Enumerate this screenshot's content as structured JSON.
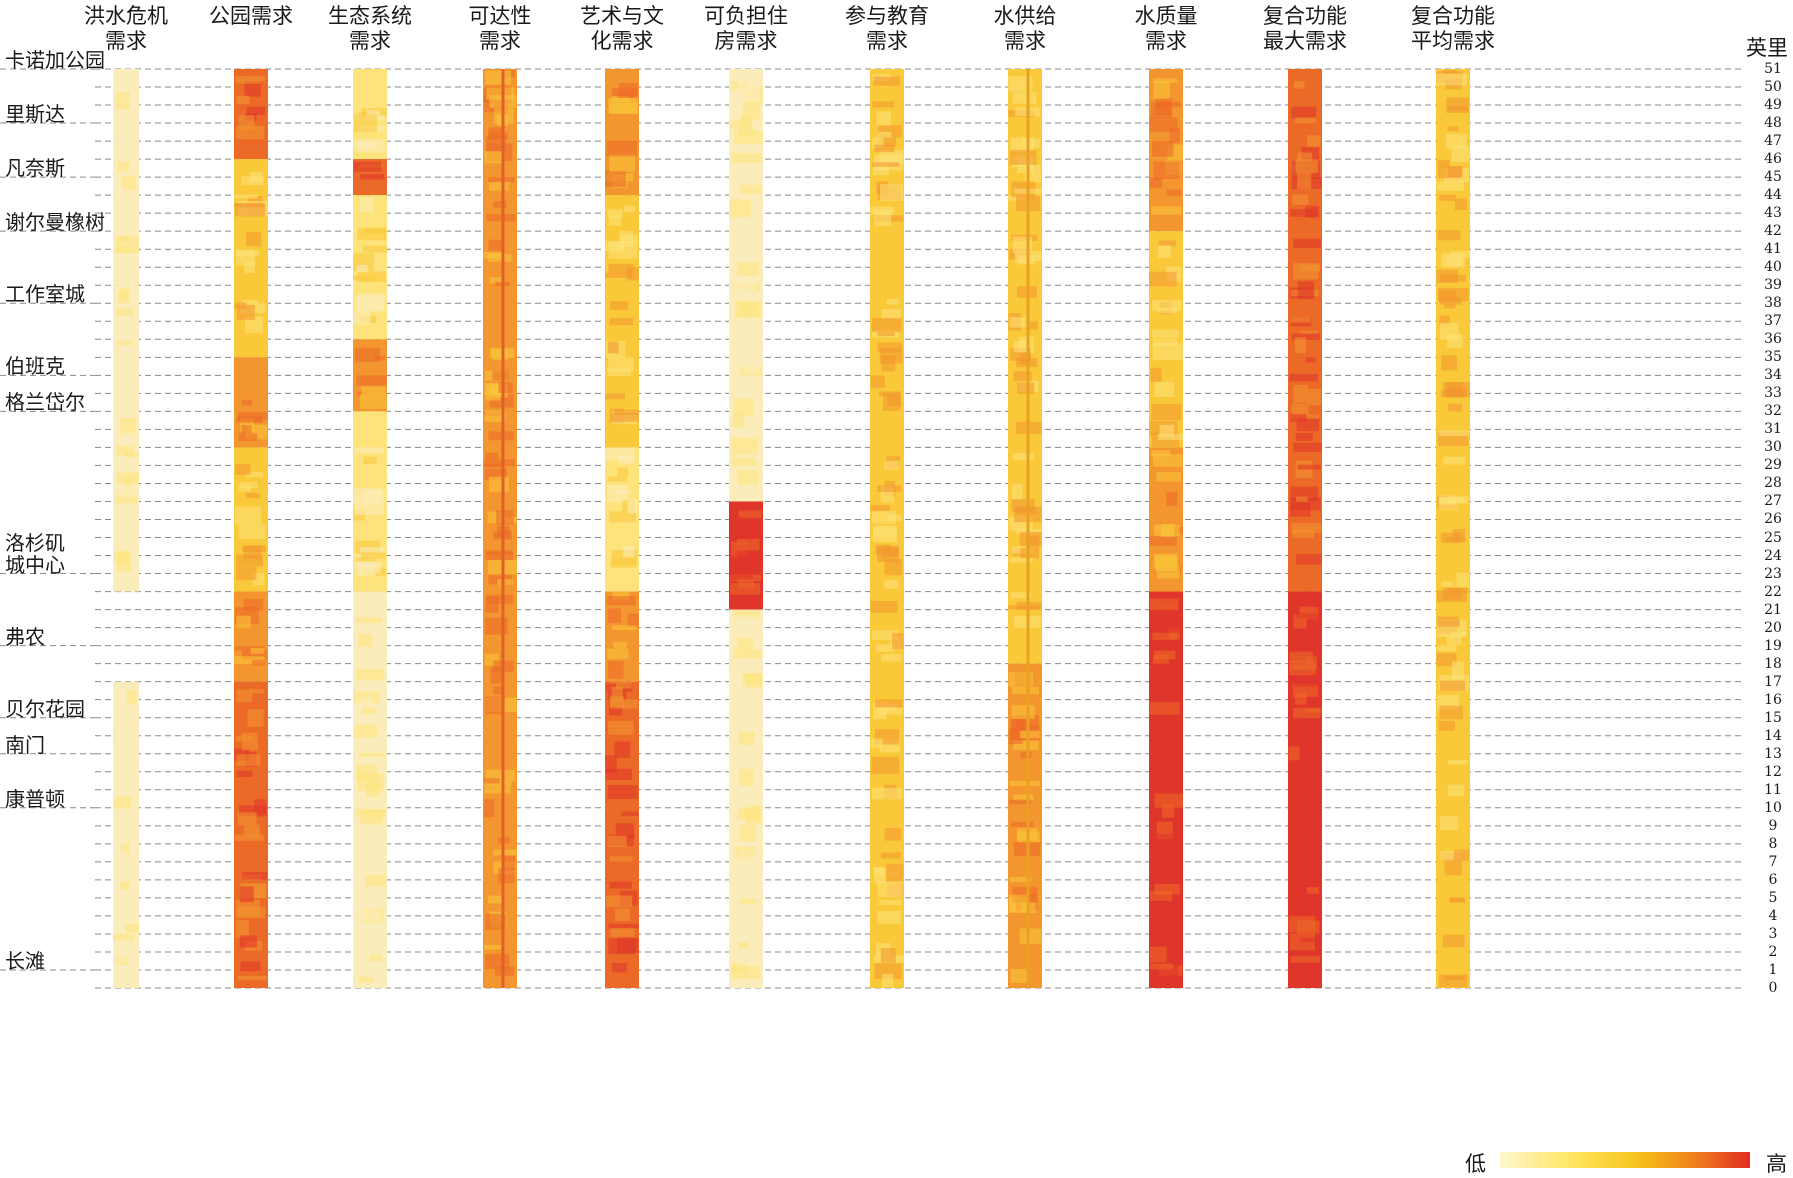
{
  "columns": [
    {
      "title": "洪水危机\n需求"
    },
    {
      "title": "公园需求"
    },
    {
      "title": "生态系统\n需求"
    },
    {
      "title": "可达性\n需求"
    },
    {
      "title": "艺术与文\n化需求"
    },
    {
      "title": "可负担住\n房需求"
    },
    {
      "title": "参与教育\n需求"
    },
    {
      "title": "水供给\n需求"
    },
    {
      "title": "水质量\n需求"
    },
    {
      "title": "复合功能\n最大需求"
    },
    {
      "title": "复合功能\n平均需求"
    }
  ],
  "places": [
    {
      "name": "卡诺加公园",
      "mile": 51
    },
    {
      "name": "里斯达",
      "mile": 48
    },
    {
      "name": "凡奈斯",
      "mile": 45
    },
    {
      "name": "谢尔曼橡树",
      "mile": 42
    },
    {
      "name": "工作室城",
      "mile": 38
    },
    {
      "name": "伯班克",
      "mile": 34
    },
    {
      "name": "格兰岱尔",
      "mile": 32
    },
    {
      "name": "洛杉矶\n城中心",
      "mile": 23
    },
    {
      "name": "弗农",
      "mile": 19
    },
    {
      "name": "贝尔花园",
      "mile": 15
    },
    {
      "name": "南门",
      "mile": 13
    },
    {
      "name": "康普顿",
      "mile": 10
    },
    {
      "name": "长滩",
      "mile": 1
    }
  ],
  "axis": {
    "unit_label": "英里",
    "min": 0,
    "max": 51
  },
  "legend": {
    "low_label": "低",
    "high_label": "高",
    "colors": [
      "#fff7cf",
      "#ffe55c",
      "#f7c21b",
      "#ee7a1e",
      "#e02b20"
    ]
  },
  "palette": {
    "pale": "#fbedbb",
    "light": "#fde37a",
    "yellow": "#f9c93a",
    "orange": "#f3962f",
    "deep": "#ec6a28",
    "red": "#e0352a"
  }
}
